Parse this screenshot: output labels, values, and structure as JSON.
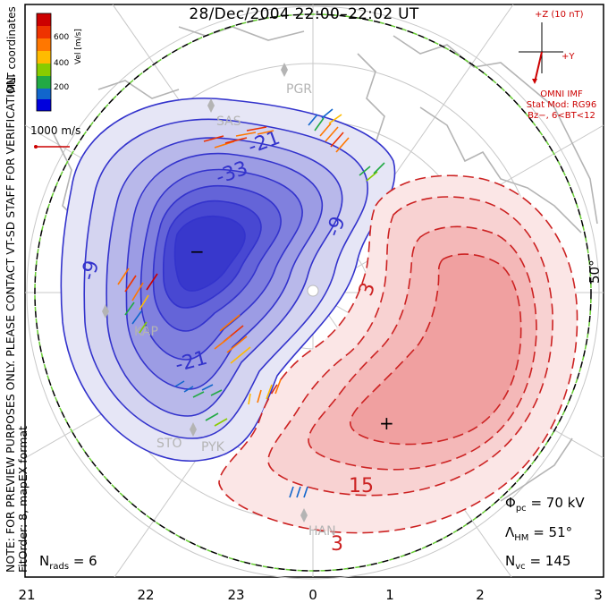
{
  "title": "28/Dec/2004 22:00–22:02 UT",
  "side_note": {
    "line1": "NOTE: FOR PREVIEW PURPOSES ONLY. PLEASE CONTACT VT-SD STAFF FOR VERIFICATION.",
    "line2": "FitOrder: 8, mapEX format"
  },
  "mlt_coordinates_label": "MLT coordinates",
  "velocity_scale": {
    "unit_label": "Vel [m/s]",
    "ticks": [
      "600",
      "400",
      "200"
    ],
    "colors": [
      "#cc0000",
      "#ee3300",
      "#ff7700",
      "#ffbb00",
      "#88cc00",
      "#22aa44",
      "#1166cc",
      "#0000dd"
    ]
  },
  "reference_vector": "1000 m/s",
  "imf": {
    "z_label": "+Z (10 nT)",
    "y_label": "+Y",
    "source": "OMNI IMF",
    "stat_mod": "Stat Mod: RG96",
    "condition": "Bz−, 6<BT<12"
  },
  "stats": {
    "phi_pc_symbol": "Φ",
    "phi_pc_sub": "pc",
    "phi_pc_value": "= 70 kV",
    "lambda_symbol": "Λ",
    "lambda_sub": "HM",
    "lambda_value": "= 51°",
    "nvc_symbol": "N",
    "nvc_sub": "vc",
    "nvc_value": "= 145",
    "nrads_symbol": "N",
    "nrads_sub": "rads",
    "nrads_value": "= 6"
  },
  "mlt_axis_labels": [
    "21",
    "22",
    "23",
    "0",
    "1",
    "2",
    "3"
  ],
  "latitude_label": "50°",
  "radar_stations": [
    "PGR",
    "SAS",
    "KAP",
    "STO",
    "PYK",
    "HAN"
  ],
  "contour_labels": {
    "negative": [
      "-9",
      "-21",
      "-33",
      "-9",
      "-21"
    ],
    "positive": [
      "3",
      "15",
      "3",
      "3"
    ]
  },
  "potential_markers": {
    "min": "−",
    "max": "+"
  },
  "colors": {
    "negative_cell": "#3333cc",
    "negative_fill_outer": "#e8e8f6",
    "negative_fill_inner": "#3838e0",
    "positive_cell": "#cc2222",
    "positive_fill_outer": "#fbe6e6",
    "positive_fill_inner": "#f0a0a0",
    "coastline": "#b4b4b4",
    "hmb": "#66cc33"
  }
}
